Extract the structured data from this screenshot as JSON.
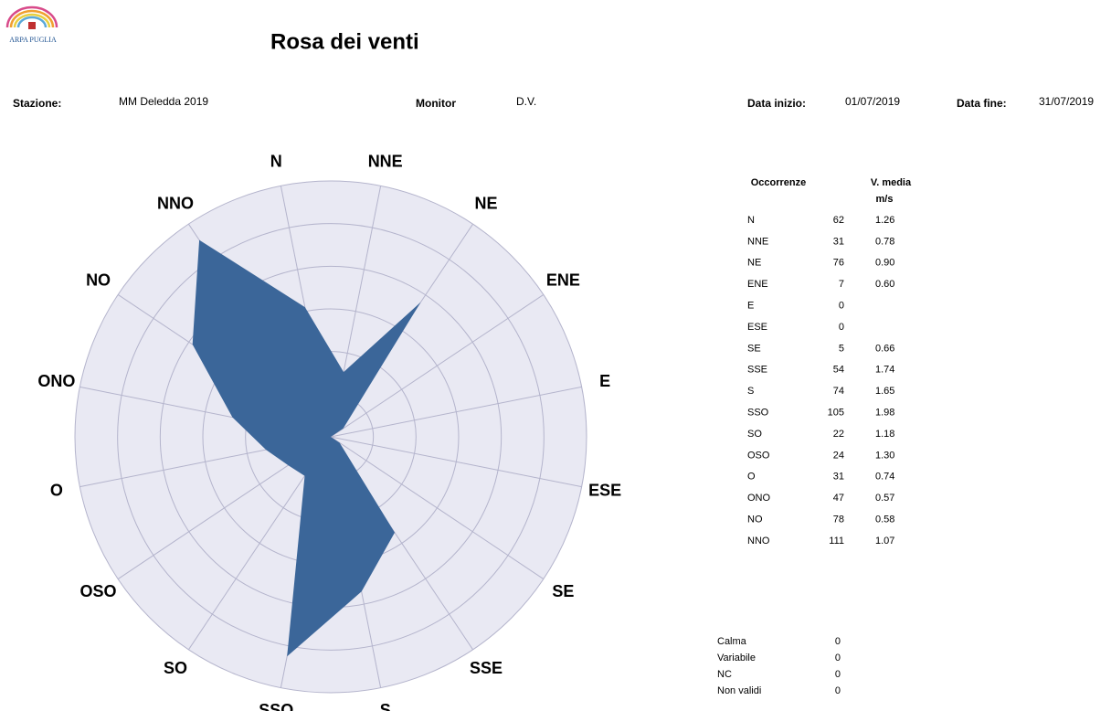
{
  "header": {
    "logo": "ARPA PUGLIA",
    "title": "Rosa dei venti",
    "station_label": "Stazione:",
    "station": "MM Deledda 2019",
    "monitor_label": "Monitor",
    "monitor": "D.V.",
    "start_label": "Data inizio:",
    "start": "01/07/2019",
    "end_label": "Data fine:",
    "end": "31/07/2019"
  },
  "chart_data": {
    "type": "radar",
    "categories": [
      "N",
      "NNE",
      "NE",
      "ENE",
      "E",
      "ESE",
      "SE",
      "SSE",
      "S",
      "SSO",
      "SO",
      "OSO",
      "O",
      "ONO",
      "NO",
      "NNO"
    ],
    "values": [
      62,
      31,
      76,
      7,
      0,
      0,
      5,
      54,
      74,
      105,
      22,
      24,
      31,
      47,
      78,
      111
    ],
    "color": "#3b6699",
    "rlim": [
      0,
      120
    ],
    "rings": 6,
    "grid": true
  },
  "table": {
    "count_header": "Occorrenze",
    "speed_header": "V. media",
    "speed_unit": "m/s",
    "speeds": [
      "1.26",
      "0.78",
      "0.90",
      "0.60",
      null,
      null,
      "0.66",
      "1.74",
      "1.65",
      "1.98",
      "1.18",
      "1.30",
      "0.74",
      "0.57",
      "0.58",
      "1.07"
    ]
  },
  "footer": {
    "rows": [
      [
        "Calma",
        "0"
      ],
      [
        "Variabile",
        "0"
      ],
      [
        "NC",
        "0"
      ],
      [
        "Non validi",
        "0"
      ]
    ]
  }
}
